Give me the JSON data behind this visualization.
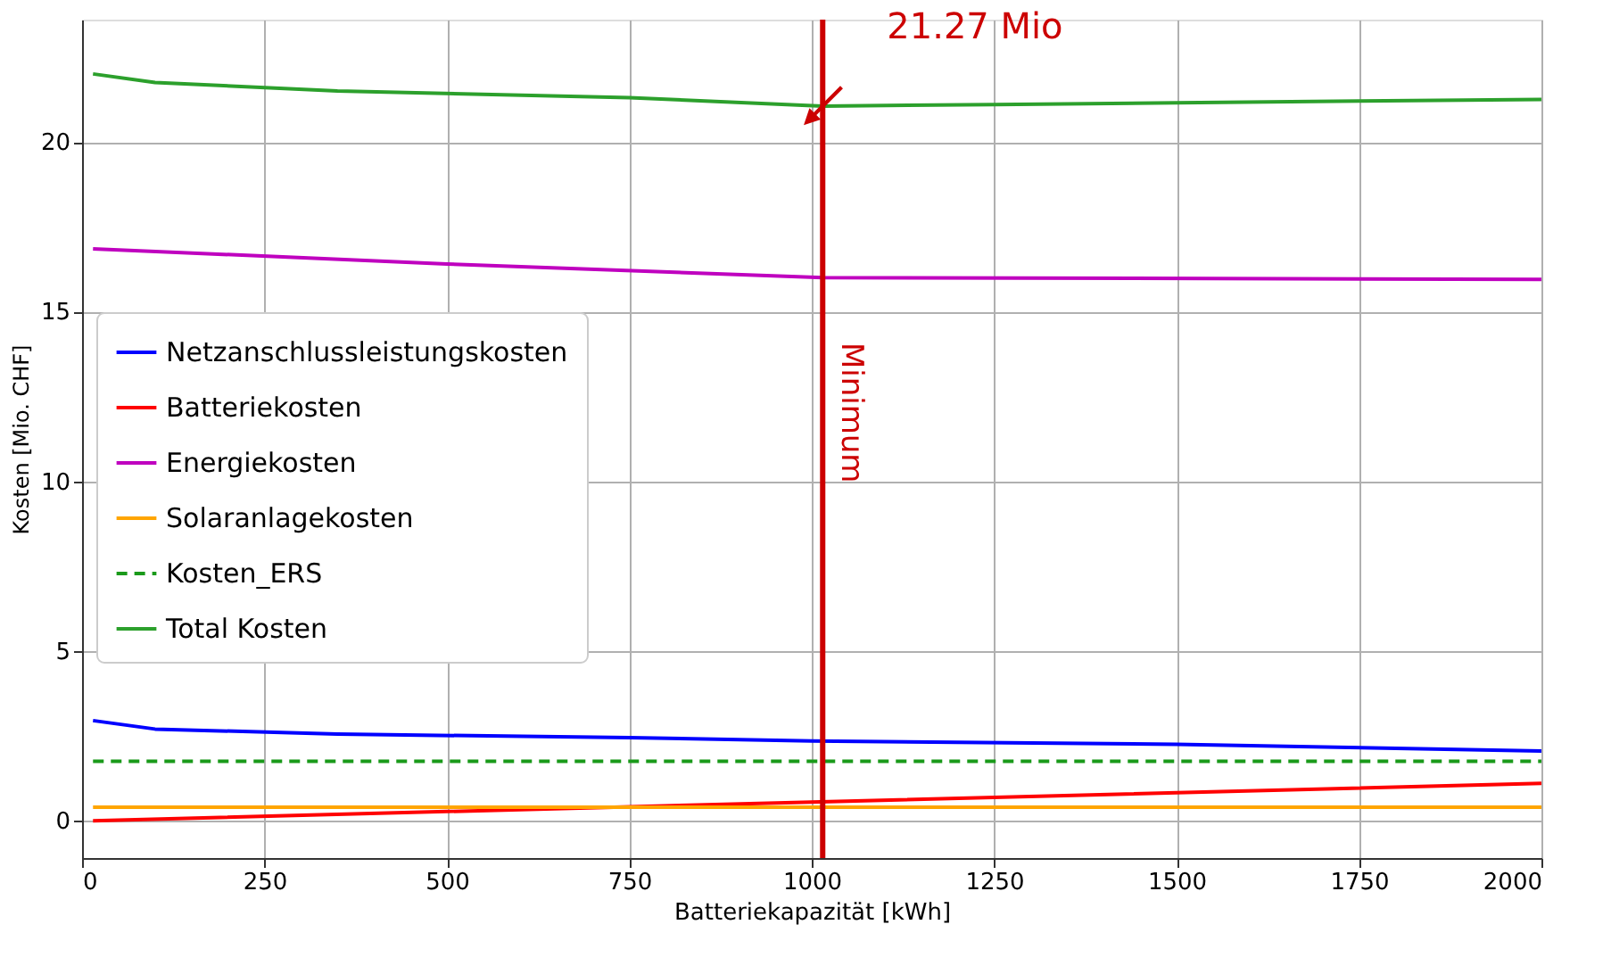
{
  "chart_data": {
    "type": "line",
    "xlabel": "Batteriekapazität [kWh]",
    "ylabel": "Kosten [Mio. CHF]",
    "xlim": [
      0,
      2000
    ],
    "xticks": [
      0,
      250,
      500,
      750,
      1000,
      1250,
      1500,
      1750,
      2000
    ],
    "ylim": [
      -1.1,
      23.6
    ],
    "yticks": [
      0,
      5,
      10,
      15,
      20
    ],
    "grid": true,
    "legend": "left",
    "series": [
      {
        "name": "Netzanschlussleistungskosten",
        "color": "#0000ff",
        "x": [
          15,
          100,
          350,
          750,
          1000,
          1500,
          2000
        ],
        "values": [
          2.95,
          2.7,
          2.55,
          2.45,
          2.35,
          2.25,
          2.05
        ]
      },
      {
        "name": "Batteriekosten",
        "color": "#ff0000",
        "x": [
          15,
          1000,
          2000
        ],
        "values": [
          0.0,
          0.55,
          1.1
        ]
      },
      {
        "name": "Energiekosten",
        "color": "#bf00bf",
        "x": [
          15,
          500,
          1015,
          2000
        ],
        "values": [
          16.85,
          16.4,
          16.0,
          15.95
        ]
      },
      {
        "name": "Solaranlagekosten",
        "color": "#ffa500",
        "x": [
          15,
          2000
        ],
        "values": [
          0.4,
          0.4
        ]
      },
      {
        "name": "Kosten_ERS",
        "color": "#1a9a1a",
        "line_style": "dashed",
        "x": [
          15,
          2000
        ],
        "values": [
          1.75,
          1.75
        ]
      },
      {
        "name": "Total Kosten",
        "color": "#2ca02c",
        "x": [
          15,
          100,
          350,
          750,
          1015,
          1250,
          1500,
          1750,
          2000
        ],
        "values": [
          22.0,
          21.75,
          21.5,
          21.3,
          21.05,
          21.1,
          21.15,
          21.2,
          21.25
        ]
      }
    ],
    "ref_lines": [
      {
        "axis": "x",
        "value": 1015,
        "label": "Minimum",
        "color": "#cc0000"
      }
    ],
    "annotations": [
      {
        "text": "21.27 Mio",
        "x": 1015,
        "y": 21.05
      }
    ]
  }
}
